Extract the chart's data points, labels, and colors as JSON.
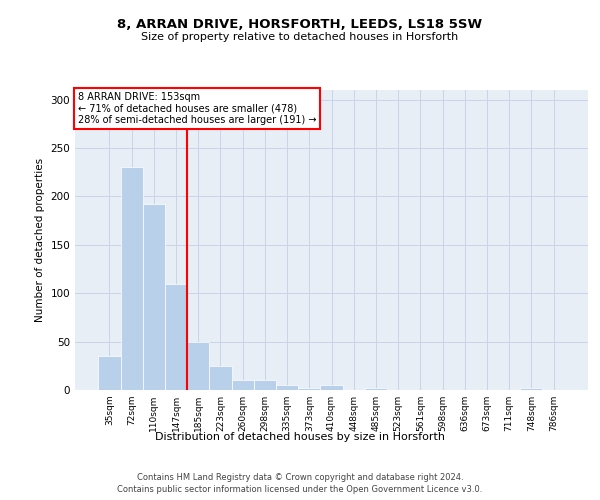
{
  "title1": "8, ARRAN DRIVE, HORSFORTH, LEEDS, LS18 5SW",
  "title2": "Size of property relative to detached houses in Horsforth",
  "xlabel": "Distribution of detached houses by size in Horsforth",
  "ylabel": "Number of detached properties",
  "property_label": "8 ARRAN DRIVE: 153sqm",
  "annotation_line1": "← 71% of detached houses are smaller (478)",
  "annotation_line2": "28% of semi-detached houses are larger (191) →",
  "bar_labels": [
    "35sqm",
    "72sqm",
    "110sqm",
    "147sqm",
    "185sqm",
    "223sqm",
    "260sqm",
    "298sqm",
    "335sqm",
    "373sqm",
    "410sqm",
    "448sqm",
    "485sqm",
    "523sqm",
    "561sqm",
    "598sqm",
    "636sqm",
    "673sqm",
    "711sqm",
    "748sqm",
    "786sqm"
  ],
  "bar_values": [
    35,
    230,
    192,
    110,
    50,
    25,
    10,
    10,
    5,
    2,
    5,
    0,
    2,
    0,
    0,
    0,
    0,
    0,
    0,
    2,
    0
  ],
  "bar_color": "#b8d0ea",
  "vline_color": "red",
  "vline_x_index": 3.5,
  "ylim": [
    0,
    310
  ],
  "yticks": [
    0,
    50,
    100,
    150,
    200,
    250,
    300
  ],
  "grid_color": "#c8d4e8",
  "bg_color": "#e8eef6",
  "annotation_box_color": "white",
  "annotation_box_edge": "red",
  "footnote1": "Contains HM Land Registry data © Crown copyright and database right 2024.",
  "footnote2": "Contains public sector information licensed under the Open Government Licence v3.0."
}
